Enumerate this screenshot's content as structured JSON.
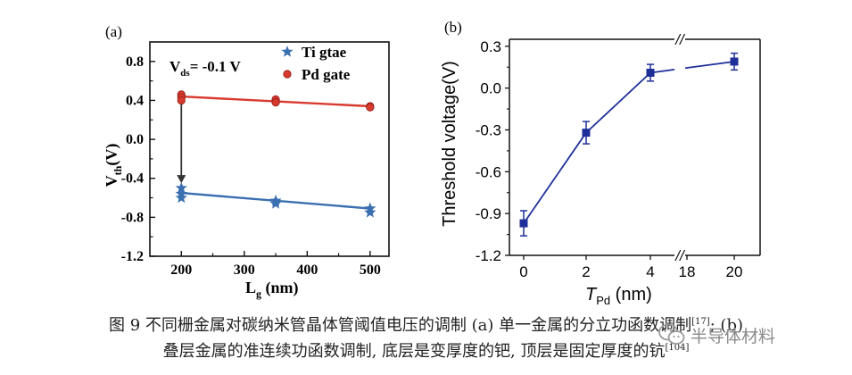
{
  "chart_data": [
    {
      "type": "scatter",
      "panel_label": "(a)",
      "annotation": "V_ds= -0.1 V",
      "annotation_main": "V",
      "annotation_sub": "ds",
      "annotation_rest": "= -0.1 V",
      "xlabel_main": "L",
      "xlabel_sub": "g",
      "xlabel_rest": " (nm)",
      "ylabel_main": "V",
      "ylabel_sub": "th",
      "ylabel_rest": "(V)",
      "xlim": [
        150,
        530
      ],
      "ylim": [
        -1.2,
        1.0
      ],
      "xticks": [
        200,
        300,
        400,
        500
      ],
      "yticks": [
        -1.2,
        -0.8,
        -0.4,
        0.0,
        0.4,
        0.8
      ],
      "ytick_labels": [
        "-1.2",
        "-0.8",
        "-0.4",
        "0.0",
        "0.4",
        "0.8"
      ],
      "legend_position": "top-right",
      "series": [
        {
          "name": "Ti gtae",
          "color": "#3a6fb0",
          "marker": "star",
          "points": [
            [
              200,
              -0.5
            ],
            [
              200,
              -0.56
            ],
            [
              200,
              -0.6
            ],
            [
              350,
              -0.63
            ],
            [
              350,
              -0.66
            ],
            [
              500,
              -0.71
            ],
            [
              500,
              -0.75
            ]
          ],
          "fit": [
            [
              200,
              -0.55
            ],
            [
              500,
              -0.71
            ]
          ]
        },
        {
          "name": "Pd gate",
          "color": "#d93a2f",
          "marker": "circle",
          "points": [
            [
              200,
              0.46
            ],
            [
              200,
              0.43
            ],
            [
              200,
              0.4
            ],
            [
              350,
              0.41
            ],
            [
              350,
              0.38
            ],
            [
              500,
              0.34
            ],
            [
              500,
              0.33
            ]
          ],
          "fit": [
            [
              200,
              0.44
            ],
            [
              500,
              0.34
            ]
          ]
        }
      ],
      "arrow": {
        "x": 200,
        "y_from": 0.36,
        "y_to": -0.45
      }
    },
    {
      "type": "line",
      "panel_label": "(b)",
      "ylabel": "Threshold voltage(V)",
      "xlabel_main": "T",
      "xlabel_sub": "Pd",
      "xlabel_rest": " (nm)",
      "categories": [
        "0",
        "2",
        "4",
        "18",
        "20"
      ],
      "ylim": [
        -1.2,
        0.35
      ],
      "yticks": [
        -1.2,
        -0.9,
        -0.6,
        -0.3,
        0.0,
        0.3
      ],
      "ytick_labels": [
        "-1.2",
        "-0.9",
        "-0.6",
        "-0.3",
        "0.0",
        "0.3"
      ],
      "axis_break_symbol": "//",
      "series": [
        {
          "color": "#1f2f99",
          "marker": "square",
          "x": [
            "0",
            "2",
            "4",
            "20"
          ],
          "values": [
            -0.97,
            -0.32,
            0.11,
            0.19
          ],
          "errors": [
            0.09,
            0.08,
            0.06,
            0.06
          ]
        }
      ]
    }
  ],
  "caption": {
    "line1_text": "图 9  不同栅金属对碳纳米管晶体管阈值电压的调制 (a) 单一金属的分立功函数调制",
    "line1_ref": "[17]",
    "line1_tail": "; (b)",
    "line2_text": "叠层金属的准连续功函数调制, 底层是变厚度的钯, 顶层是固定厚度的钪",
    "line2_ref": "[104]"
  },
  "watermark": {
    "text": "半导体材料",
    "icon": "wechat-logo-icon"
  }
}
